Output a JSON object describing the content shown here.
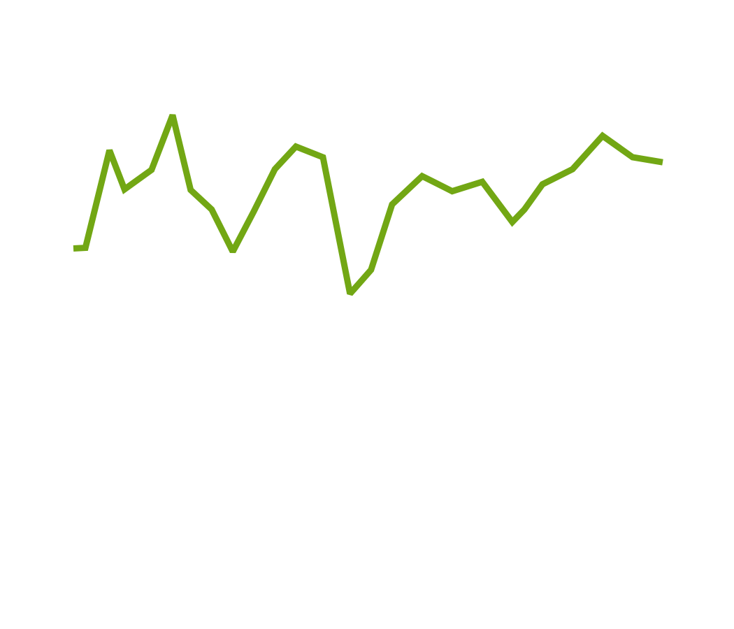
{
  "chart_data": {
    "type": "line",
    "title": "",
    "xlabel": "",
    "ylabel": "",
    "grid": false,
    "legend": "none",
    "series": [
      {
        "color": "#72a714",
        "values": [
          [
            0,
            39.5
          ],
          [
            0.4,
            39.4
          ],
          [
            1.2,
            23.9
          ],
          [
            1.7,
            30.1
          ],
          [
            2.6,
            27.0
          ],
          [
            3.3,
            18.3
          ],
          [
            3.9,
            30.2
          ],
          [
            4.6,
            33.3
          ],
          [
            5.3,
            40.0
          ],
          [
            6.0,
            33.6
          ],
          [
            6.7,
            26.9
          ],
          [
            7.4,
            23.3
          ],
          [
            8.3,
            25.0
          ],
          [
            9.2,
            46.7
          ],
          [
            9.9,
            42.9
          ],
          [
            10.6,
            32.5
          ],
          [
            11.6,
            28.0
          ],
          [
            12.6,
            30.4
          ],
          [
            13.6,
            28.9
          ],
          [
            14.6,
            35.3
          ],
          [
            15.0,
            33.3
          ],
          [
            15.6,
            29.3
          ],
          [
            16.6,
            26.9
          ],
          [
            17.6,
            21.6
          ],
          [
            18.6,
            25.0
          ],
          [
            19.6,
            25.8
          ]
        ]
      }
    ],
    "xlim": [
      0,
      19.6
    ],
    "ylim": [
      0,
      100
    ]
  }
}
